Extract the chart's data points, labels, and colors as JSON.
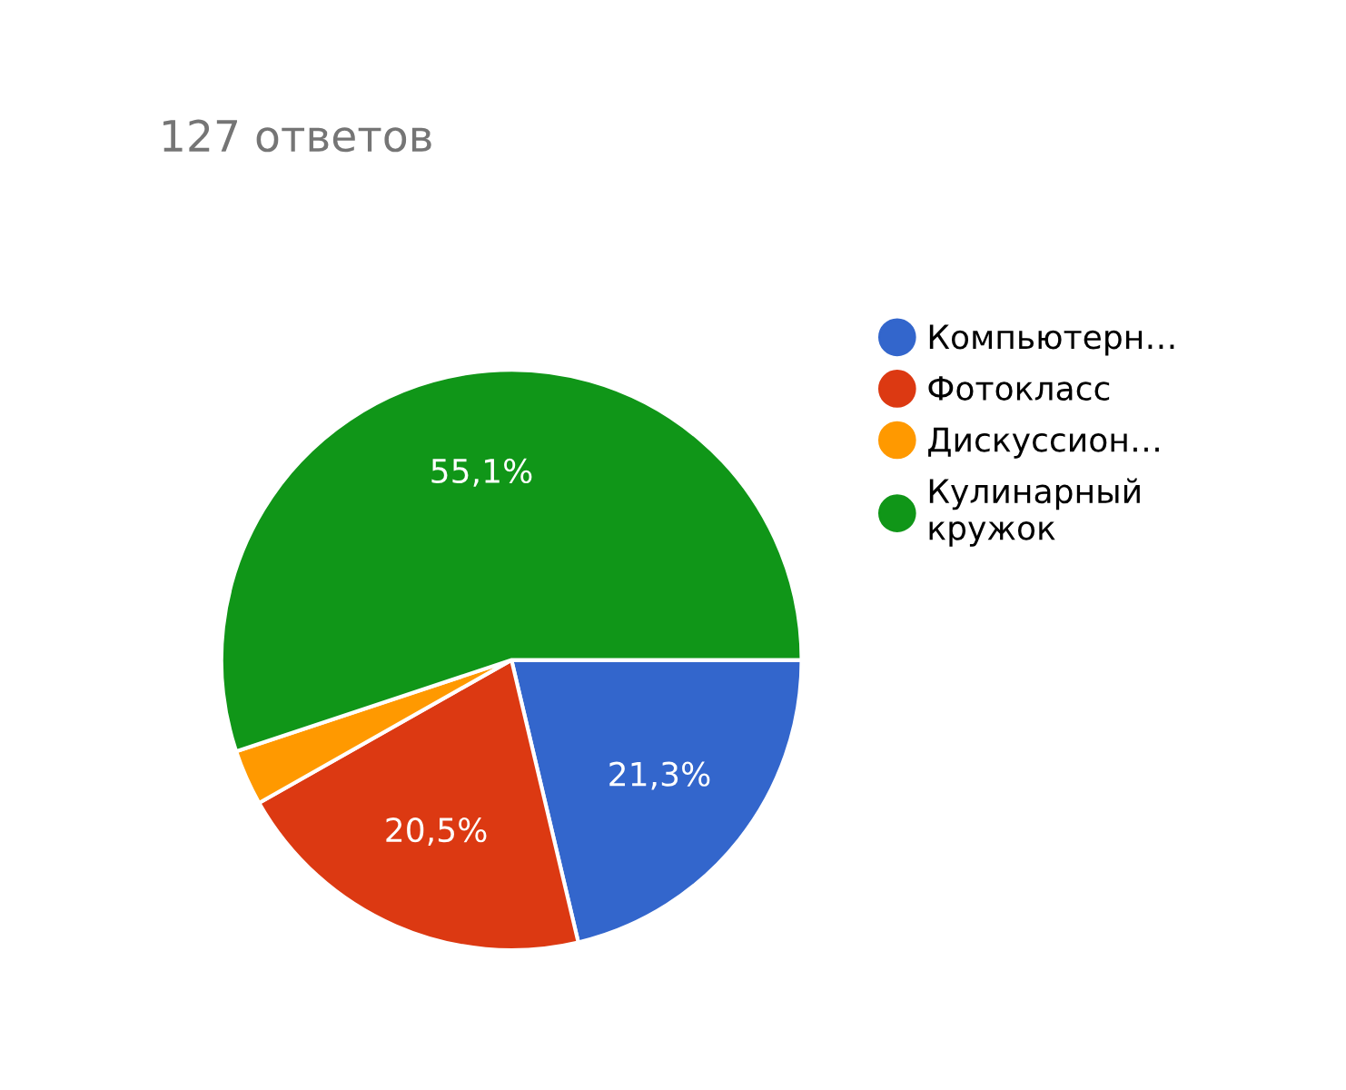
{
  "chart_data": {
    "type": "pie",
    "title": "127 ответов",
    "categories": [
      "Компьютерн…",
      "Фотокласс",
      "Дискуссион…",
      "Кулинарный\nкружок"
    ],
    "values": [
      21.3,
      20.5,
      3.1,
      55.1
    ],
    "value_labels": [
      "21,3%",
      "20,5%",
      null,
      "55,1%"
    ],
    "colors": [
      "#3366cc",
      "#dc3912",
      "#ff9900",
      "#109618"
    ],
    "legend": "right"
  }
}
